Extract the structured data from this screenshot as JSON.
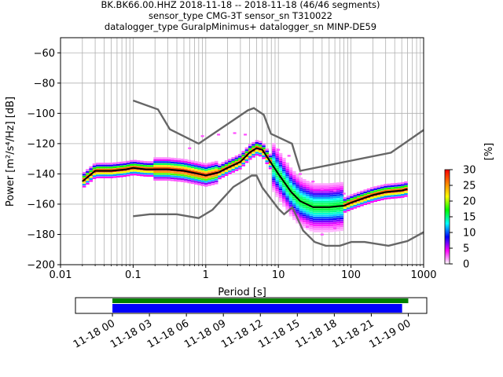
{
  "header": {
    "line1": "BK.BK66.00.HHZ   2018-11-18 -- 2018-11-18  (46/46 segments)",
    "line2": "sensor_type CMG-3T sensor_sn T310022",
    "line3": "datalogger_type GuralpMinimus+ datalogger_sn MINP-DE59"
  },
  "chart_data": [
    {
      "type": "heatmap",
      "xlabel": "Period [s]",
      "ylabel": "Power [m²/s⁴/Hz] [dB]",
      "xscale": "log",
      "xlim": [
        0.01,
        1000
      ],
      "ylim": [
        -200,
        -50
      ],
      "x_tick_labels": [
        "0.01",
        "0.1",
        "1",
        "10",
        "100",
        "1000"
      ],
      "y_tick_values": [
        -200,
        -180,
        -160,
        -140,
        -120,
        -100,
        -80,
        -60
      ],
      "grid": true,
      "mean_curve": {
        "color": "#000000",
        "points": [
          [
            0.02,
            -145
          ],
          [
            0.03,
            -138
          ],
          [
            0.05,
            -138
          ],
          [
            0.08,
            -137
          ],
          [
            0.1,
            -136
          ],
          [
            0.15,
            -137
          ],
          [
            0.3,
            -137
          ],
          [
            0.5,
            -138
          ],
          [
            0.8,
            -140
          ],
          [
            1.0,
            -141
          ],
          [
            1.5,
            -139
          ],
          [
            2.0,
            -136
          ],
          [
            3.0,
            -132
          ],
          [
            4.0,
            -126
          ],
          [
            5.0,
            -123
          ],
          [
            6.0,
            -124
          ],
          [
            8.0,
            -133
          ],
          [
            10.0,
            -140
          ],
          [
            15.0,
            -152
          ],
          [
            20.0,
            -158
          ],
          [
            30.0,
            -162
          ],
          [
            50.0,
            -162
          ],
          [
            80.0,
            -161
          ],
          [
            100.0,
            -159
          ],
          [
            150.0,
            -156
          ],
          [
            200.0,
            -154
          ],
          [
            300.0,
            -152
          ],
          [
            500.0,
            -151
          ],
          [
            600.0,
            -150
          ]
        ]
      },
      "noise_models": {
        "color": "#666666",
        "high": [
          [
            0.1,
            -91.5
          ],
          [
            0.22,
            -97.4
          ],
          [
            0.32,
            -110.5
          ],
          [
            0.8,
            -120
          ],
          [
            3.8,
            -98
          ],
          [
            4.6,
            -96.5
          ],
          [
            6.3,
            -101
          ],
          [
            7.9,
            -113.5
          ],
          [
            15.4,
            -120
          ],
          [
            20,
            -138
          ],
          [
            354.8,
            -126
          ],
          [
            1000,
            -111
          ]
        ],
        "low": [
          [
            0.1,
            -168
          ],
          [
            0.17,
            -166.7
          ],
          [
            0.4,
            -166.7
          ],
          [
            0.8,
            -169.2
          ],
          [
            1.24,
            -163.7
          ],
          [
            2.4,
            -148.6
          ],
          [
            4.3,
            -141.1
          ],
          [
            5.0,
            -141.1
          ],
          [
            6.0,
            -149
          ],
          [
            10.0,
            -163
          ],
          [
            12.0,
            -166.7
          ],
          [
            15.6,
            -162.1
          ],
          [
            21.9,
            -177.5
          ],
          [
            31.6,
            -185
          ],
          [
            45.0,
            -187.5
          ],
          [
            70.0,
            -187.5
          ],
          [
            101.0,
            -185
          ],
          [
            154.0,
            -185
          ],
          [
            328.0,
            -187.5
          ],
          [
            600.0,
            -184.4
          ],
          [
            1000,
            -178.5
          ]
        ]
      },
      "colorbar": {
        "label": "[%]",
        "range": [
          0,
          30
        ],
        "tick_labels": [
          "0",
          "5",
          "10",
          "15",
          "20",
          "25",
          "30"
        ],
        "colormap": [
          "#ffffff",
          "#ff00ff",
          "#0000ff",
          "#00ffff",
          "#00ff00",
          "#ffff00",
          "#ff8000",
          "#ff0000"
        ]
      }
    },
    {
      "type": "bar",
      "title": "",
      "x_tick_labels": [
        "11-18 00",
        "11-18 03",
        "11-18 06",
        "11-18 09",
        "11-18 12",
        "11-18 15",
        "11-18 18",
        "11-18 21",
        "11-19 00"
      ],
      "x_range_hours": [
        -3.0,
        25.5
      ],
      "series": [
        {
          "color": "#008000",
          "start_hour": 0.0,
          "end_hour": 24.0
        },
        {
          "color": "#0000ff",
          "start_hour": 0.0,
          "end_hour": 23.5
        }
      ]
    }
  ]
}
